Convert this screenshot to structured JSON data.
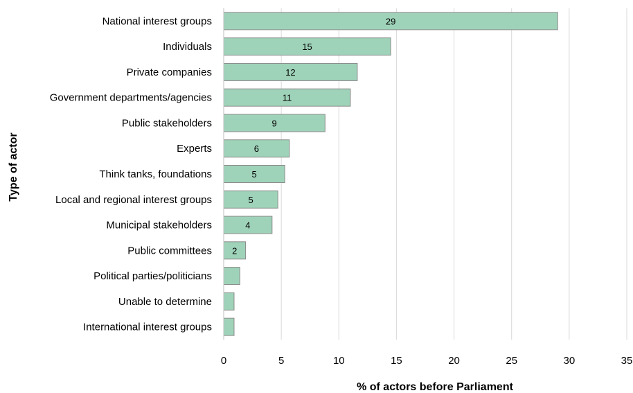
{
  "chart_data": {
    "type": "bar",
    "orientation": "horizontal",
    "title": "",
    "xlabel": "% of actors before Parliament",
    "ylabel": "Type of actor",
    "xlim": [
      0,
      35
    ],
    "xticks": [
      0,
      5,
      10,
      15,
      20,
      25,
      30,
      35
    ],
    "grid": true,
    "categories": [
      "National interest groups",
      "Individuals",
      "Private companies",
      "Government departments/agencies",
      "Public stakeholders",
      "Experts",
      "Think tanks, foundations",
      "Local and regional interest groups",
      "Municipal stakeholders",
      "Public committees",
      "Political parties/politicians",
      "Unable to determine",
      "International interest groups"
    ],
    "values": [
      29,
      14.5,
      11.6,
      11,
      8.8,
      5.7,
      5.3,
      4.7,
      4.2,
      1.9,
      1.4,
      0.9,
      0.9
    ],
    "data_labels": [
      "29",
      "15",
      "12",
      "11",
      "9",
      "6",
      "5",
      "5",
      "4",
      "2",
      "",
      "",
      ""
    ],
    "bar_color": "#9fd3b9",
    "bar_edge_color": "#8a8a8a"
  }
}
